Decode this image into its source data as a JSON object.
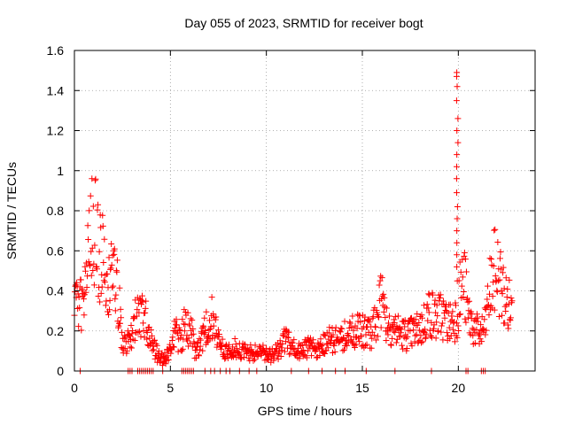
{
  "chart_data": {
    "type": "scatter",
    "title": "Day 055 of 2023, SRMTID for receiver bogt",
    "xlabel": "GPS time / hours",
    "ylabel": "SRMTID / TECUs",
    "xlim": [
      0,
      24
    ],
    "ylim": [
      0,
      1.6
    ],
    "grid": true,
    "marker": "+",
    "color": "#ff0000",
    "x_ticks": [
      0,
      5,
      10,
      15,
      20
    ],
    "x_tick_labels": [
      "0",
      "5",
      "10",
      "15",
      "20"
    ],
    "y_ticks": [
      0,
      0.2,
      0.4,
      0.6,
      0.8,
      1.0,
      1.2,
      1.4,
      1.6
    ],
    "y_tick_labels": [
      "0",
      "0.2",
      "0.4",
      "0.6",
      "0.8",
      "1",
      "1.2",
      "1.4",
      "1.6"
    ],
    "series": [
      {
        "name": "SRMTID",
        "profile_points": [
          [
            0.0,
            0.28
          ],
          [
            0.2,
            0.34
          ],
          [
            0.4,
            0.36
          ],
          [
            0.6,
            0.52
          ],
          [
            0.8,
            0.65
          ],
          [
            1.0,
            0.74
          ],
          [
            1.1,
            0.8
          ],
          [
            1.3,
            0.52
          ],
          [
            1.5,
            0.62
          ],
          [
            1.7,
            0.45
          ],
          [
            1.9,
            0.5
          ],
          [
            2.1,
            0.45
          ],
          [
            2.3,
            0.38
          ],
          [
            2.5,
            0.14
          ],
          [
            2.7,
            0.12
          ],
          [
            2.9,
            0.18
          ],
          [
            3.1,
            0.24
          ],
          [
            3.4,
            0.26
          ],
          [
            3.7,
            0.26
          ],
          [
            3.9,
            0.17
          ],
          [
            4.1,
            0.12
          ],
          [
            4.4,
            0.07
          ],
          [
            4.7,
            0.06
          ],
          [
            5.0,
            0.1
          ],
          [
            5.2,
            0.2
          ],
          [
            5.5,
            0.15
          ],
          [
            5.8,
            0.24
          ],
          [
            6.1,
            0.2
          ],
          [
            6.3,
            0.08
          ],
          [
            6.6,
            0.14
          ],
          [
            6.9,
            0.22
          ],
          [
            7.2,
            0.26
          ],
          [
            7.5,
            0.14
          ],
          [
            7.8,
            0.1
          ],
          [
            8.2,
            0.12
          ],
          [
            8.6,
            0.1
          ],
          [
            9.0,
            0.09
          ],
          [
            9.4,
            0.09
          ],
          [
            9.8,
            0.1
          ],
          [
            10.2,
            0.07
          ],
          [
            10.6,
            0.1
          ],
          [
            10.9,
            0.15
          ],
          [
            11.2,
            0.14
          ],
          [
            11.5,
            0.1
          ],
          [
            11.9,
            0.1
          ],
          [
            12.2,
            0.12
          ],
          [
            12.6,
            0.1
          ],
          [
            13.0,
            0.13
          ],
          [
            13.4,
            0.16
          ],
          [
            13.8,
            0.15
          ],
          [
            14.2,
            0.18
          ],
          [
            14.6,
            0.2
          ],
          [
            15.0,
            0.2
          ],
          [
            15.4,
            0.18
          ],
          [
            15.8,
            0.3
          ],
          [
            16.0,
            0.36
          ],
          [
            16.2,
            0.26
          ],
          [
            16.6,
            0.22
          ],
          [
            17.0,
            0.19
          ],
          [
            17.4,
            0.18
          ],
          [
            17.8,
            0.2
          ],
          [
            18.1,
            0.22
          ],
          [
            18.5,
            0.3
          ],
          [
            18.8,
            0.26
          ],
          [
            19.1,
            0.28
          ],
          [
            19.5,
            0.24
          ],
          [
            19.8,
            0.26
          ],
          [
            19.95,
            0.3
          ],
          [
            20.1,
            0.4
          ],
          [
            20.3,
            0.46
          ],
          [
            20.5,
            0.28
          ],
          [
            20.8,
            0.22
          ],
          [
            21.1,
            0.18
          ],
          [
            21.4,
            0.22
          ],
          [
            21.6,
            0.38
          ],
          [
            21.9,
            0.5
          ],
          [
            22.1,
            0.48
          ],
          [
            22.4,
            0.36
          ],
          [
            22.6,
            0.33
          ],
          [
            22.8,
            0.3
          ]
        ],
        "spike": {
          "x": 19.95,
          "y_values": [
            0.45,
            0.52,
            0.58,
            0.64,
            0.7,
            0.76,
            0.82,
            0.89,
            0.96,
            1.02,
            1.08,
            1.14,
            1.2,
            1.26,
            1.35,
            1.42,
            1.47,
            1.49
          ]
        },
        "zero_points_x": [
          0.3,
          2.8,
          2.9,
          3.0,
          3.3,
          3.4,
          3.5,
          3.6,
          3.7,
          3.8,
          3.9,
          4.0,
          4.1,
          4.6,
          5.6,
          5.7,
          5.8,
          5.9,
          6.0,
          6.1,
          6.2,
          6.8,
          7.1,
          7.3,
          7.6,
          7.9,
          8.1,
          8.6,
          9.1,
          9.5,
          11.3,
          12.2,
          12.9,
          13.6,
          14.1,
          15.2,
          16.7,
          18.6,
          20.4,
          20.5,
          21.2,
          21.3,
          21.4
        ],
        "seed": 20230224,
        "samples": 950
      }
    ]
  }
}
